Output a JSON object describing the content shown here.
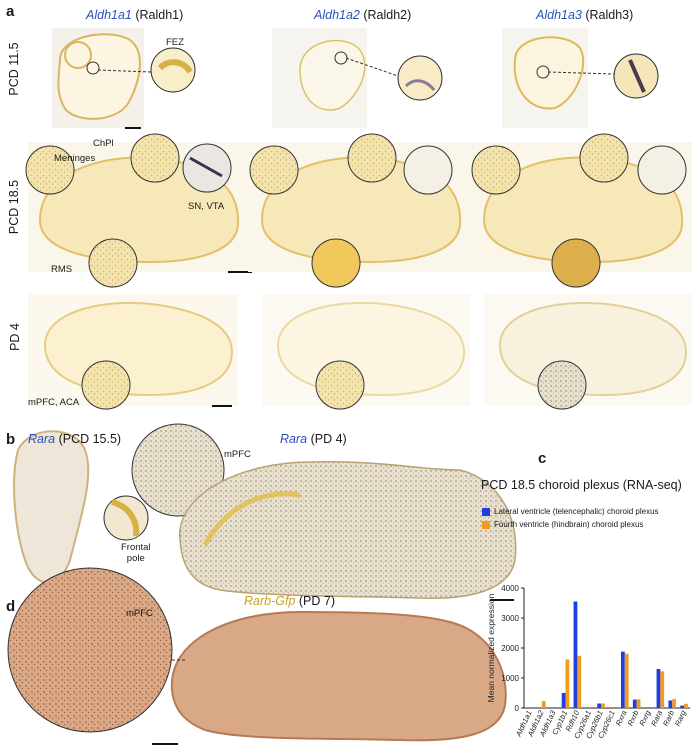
{
  "panel_a": {
    "letter": "a",
    "columns": [
      {
        "gene": "Aldh1a1",
        "alias": "(Raldh1)"
      },
      {
        "gene": "Aldh1a2",
        "alias": "(Raldh2)"
      },
      {
        "gene": "Aldh1a3",
        "alias": "(Raldh3)"
      }
    ],
    "rows": [
      "PCD 11.5",
      "PCD 18.5",
      "PD 4"
    ],
    "annotations": {
      "fez": "FEZ",
      "chpl": "ChPl",
      "meninges": "Meninges",
      "sn_vta": "SN, VTA",
      "rms": "RMS",
      "mpfc_aca": "mPFC, ACA"
    }
  },
  "panel_b": {
    "letter": "b",
    "left_title": {
      "gene": "Rara",
      "stage": "(PCD 15.5)"
    },
    "right_title": {
      "gene": "Rara",
      "stage": "(PD 4)"
    },
    "mpfc": "mPFC",
    "frontal_pole": "Frontal\npole"
  },
  "panel_c": {
    "letter": "c"
  },
  "panel_d": {
    "letter": "d",
    "title": {
      "gene": "Rarb-Gfp",
      "stage": "(PD 7)"
    },
    "mpfc": "mPFC"
  },
  "colors": {
    "blue": "#1f3fe0",
    "orange": "#f59a1c",
    "gene_blue": "#2a52be",
    "gene_gold": "#c9a227",
    "ish_yellow": "#e8c45e",
    "gfp_brown": "#b98563"
  },
  "chart_data": {
    "type": "bar",
    "title": "PCD 18.5 choroid plexus (RNA-seq)",
    "ylabel": "Mean normalized expression",
    "ylim": [
      0,
      4000
    ],
    "yticks": [
      0,
      1000,
      2000,
      3000,
      4000
    ],
    "categories": [
      "Aldh1a1",
      "Aldh1a2",
      "Aldh1a3",
      "Cyp1b1",
      "Rdh10",
      "Cyp26a1",
      "Cyp26b1",
      "Cyp26c1",
      "Rxra",
      "Rxrb",
      "Rxrg",
      "Rara",
      "Rarb",
      "Rarg"
    ],
    "series": [
      {
        "name": "Lateral ventricle (telencephalic) choroid plexus",
        "color": "#1f3fe0",
        "values": [
          0,
          0,
          0,
          500,
          3550,
          0,
          150,
          0,
          1880,
          280,
          0,
          1300,
          250,
          80
        ]
      },
      {
        "name": "Fourth ventricle (hindbrain) choroid plexus",
        "color": "#f59a1c",
        "values": [
          0,
          230,
          0,
          1620,
          1740,
          0,
          150,
          0,
          1810,
          290,
          0,
          1220,
          300,
          140
        ]
      }
    ],
    "legend": "top-left",
    "grid": false
  }
}
